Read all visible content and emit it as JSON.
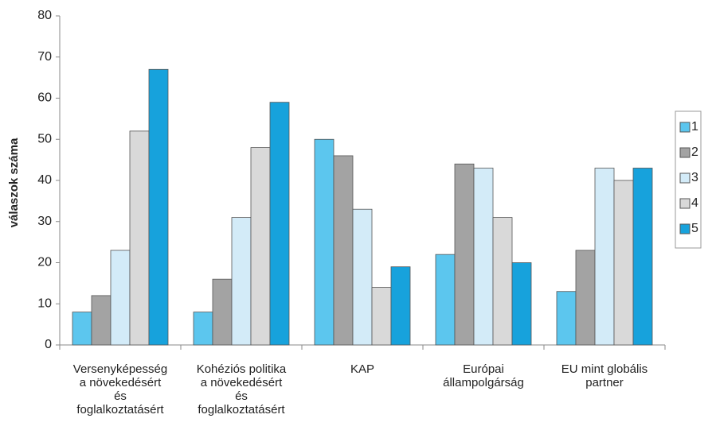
{
  "chart_data": {
    "type": "bar",
    "y_label": "válaszok száma",
    "categories": [
      "Versenyképesség\na növekedésért\nés\nfoglalkoztatásért",
      "Kohéziós politika\na növekedésért\nés\nfoglalkoztatásért",
      "KAP",
      "Európai\nállampolgárság",
      "EU mint globális\npartner"
    ],
    "series": [
      {
        "name": "1",
        "color": "#5cc6ee",
        "values": [
          8,
          8,
          50,
          22,
          13
        ]
      },
      {
        "name": "2",
        "color": "#a3a3a3",
        "values": [
          12,
          16,
          46,
          44,
          23
        ]
      },
      {
        "name": "3",
        "color": "#d3ebf8",
        "values": [
          23,
          31,
          33,
          43,
          43
        ]
      },
      {
        "name": "4",
        "color": "#d9d9d9",
        "values": [
          52,
          48,
          14,
          31,
          40
        ]
      },
      {
        "name": "5",
        "color": "#17a2dc",
        "values": [
          67,
          59,
          19,
          20,
          43
        ]
      }
    ],
    "ylim": [
      0,
      80
    ],
    "yticks": [
      0,
      10,
      20,
      30,
      40,
      50,
      60,
      70,
      80
    ],
    "grid": false,
    "legend": "right"
  }
}
